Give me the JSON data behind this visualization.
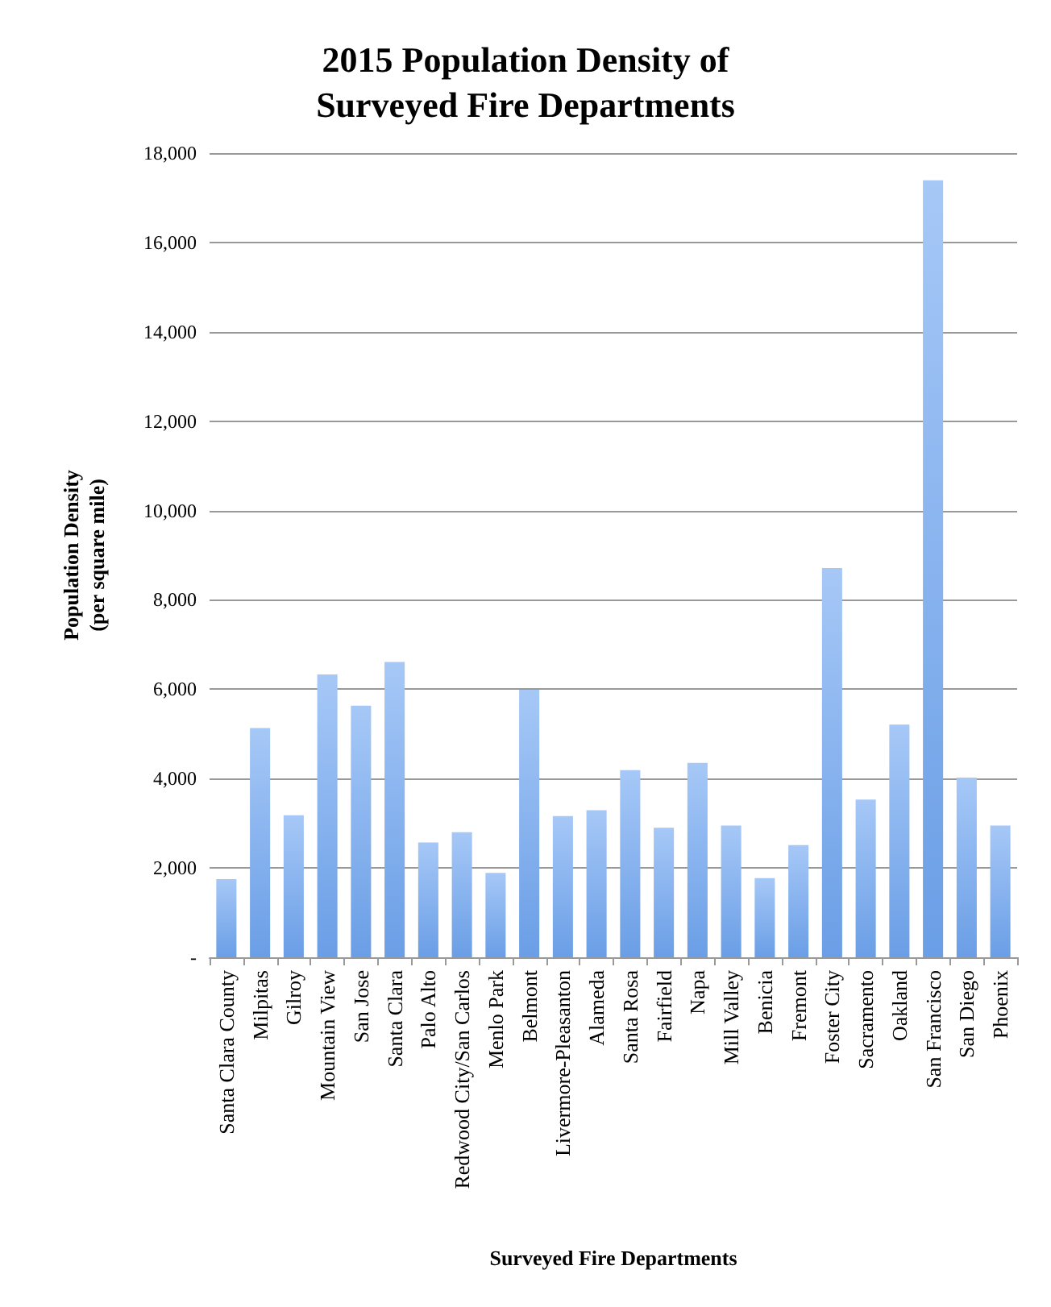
{
  "chart_data": {
    "type": "bar",
    "title": "2015 Population Density of\nSurveyed Fire Departments",
    "xlabel": "Surveyed Fire Departments",
    "ylabel": "Population Density\n(per square mile)",
    "categories": [
      "Santa Clara County",
      "Milpitas",
      "Gilroy",
      "Mountain View",
      "San Jose",
      "Santa Clara",
      "Palo Alto",
      "Redwood City/San Carlos",
      "Menlo Park",
      "Belmont",
      "Livermore-Pleasanton",
      "Alameda",
      "Santa Rosa",
      "Fairfield",
      "Napa",
      "Mill Valley",
      "Benicia",
      "Fremont",
      "Foster City",
      "Sacramento",
      "Oakland",
      "San Francisco",
      "San Diego",
      "Phoenix"
    ],
    "values": [
      1750,
      5130,
      3180,
      6330,
      5630,
      6610,
      2570,
      2800,
      1890,
      5990,
      3160,
      3290,
      4190,
      2900,
      4350,
      2950,
      1770,
      2510,
      8710,
      3530,
      5210,
      17390,
      4020,
      2950
    ],
    "color": "#6a9ee6",
    "ylim": [
      0,
      18000
    ],
    "yticks": [
      {
        "value": 0,
        "label": "-"
      },
      {
        "value": 2000,
        "label": "2,000"
      },
      {
        "value": 4000,
        "label": "4,000"
      },
      {
        "value": 6000,
        "label": "6,000"
      },
      {
        "value": 8000,
        "label": "8,000"
      },
      {
        "value": 10000,
        "label": "10,000"
      },
      {
        "value": 12000,
        "label": "12,000"
      },
      {
        "value": 14000,
        "label": "14,000"
      },
      {
        "value": 16000,
        "label": "16,000"
      },
      {
        "value": 18000,
        "label": "18,000"
      }
    ],
    "grid": "y"
  }
}
